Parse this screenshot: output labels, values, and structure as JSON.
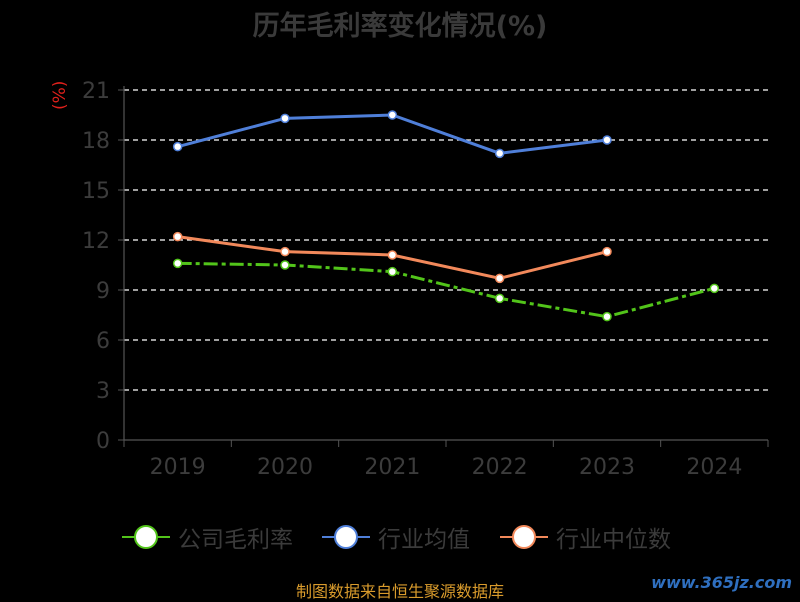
{
  "chart_data": {
    "type": "line",
    "title": "历年毛利率变化情况(%)",
    "unit_label": "(%)",
    "categories": [
      "2019",
      "2020",
      "2021",
      "2022",
      "2023",
      "2024"
    ],
    "y_ticks": [
      "0",
      "3",
      "6",
      "9",
      "12",
      "15",
      "18",
      "21"
    ],
    "ylim": [
      0,
      21
    ],
    "grid": true,
    "legend_position": "bottom",
    "series": [
      {
        "name": "公司毛利率",
        "color": "#52c41a",
        "values": [
          10.6,
          10.5,
          10.1,
          8.5,
          7.4,
          9.1
        ]
      },
      {
        "name": "行业均值",
        "color": "#4f7fd9",
        "values": [
          17.6,
          19.3,
          19.5,
          17.2,
          18.0,
          null
        ]
      },
      {
        "name": "行业中位数",
        "color": "#f2895b",
        "values": [
          12.2,
          11.3,
          11.1,
          9.7,
          11.3,
          null
        ]
      }
    ]
  },
  "footer": {
    "source": "制图数据来自恒生聚源数据库",
    "watermark": "www.365jz.com"
  }
}
